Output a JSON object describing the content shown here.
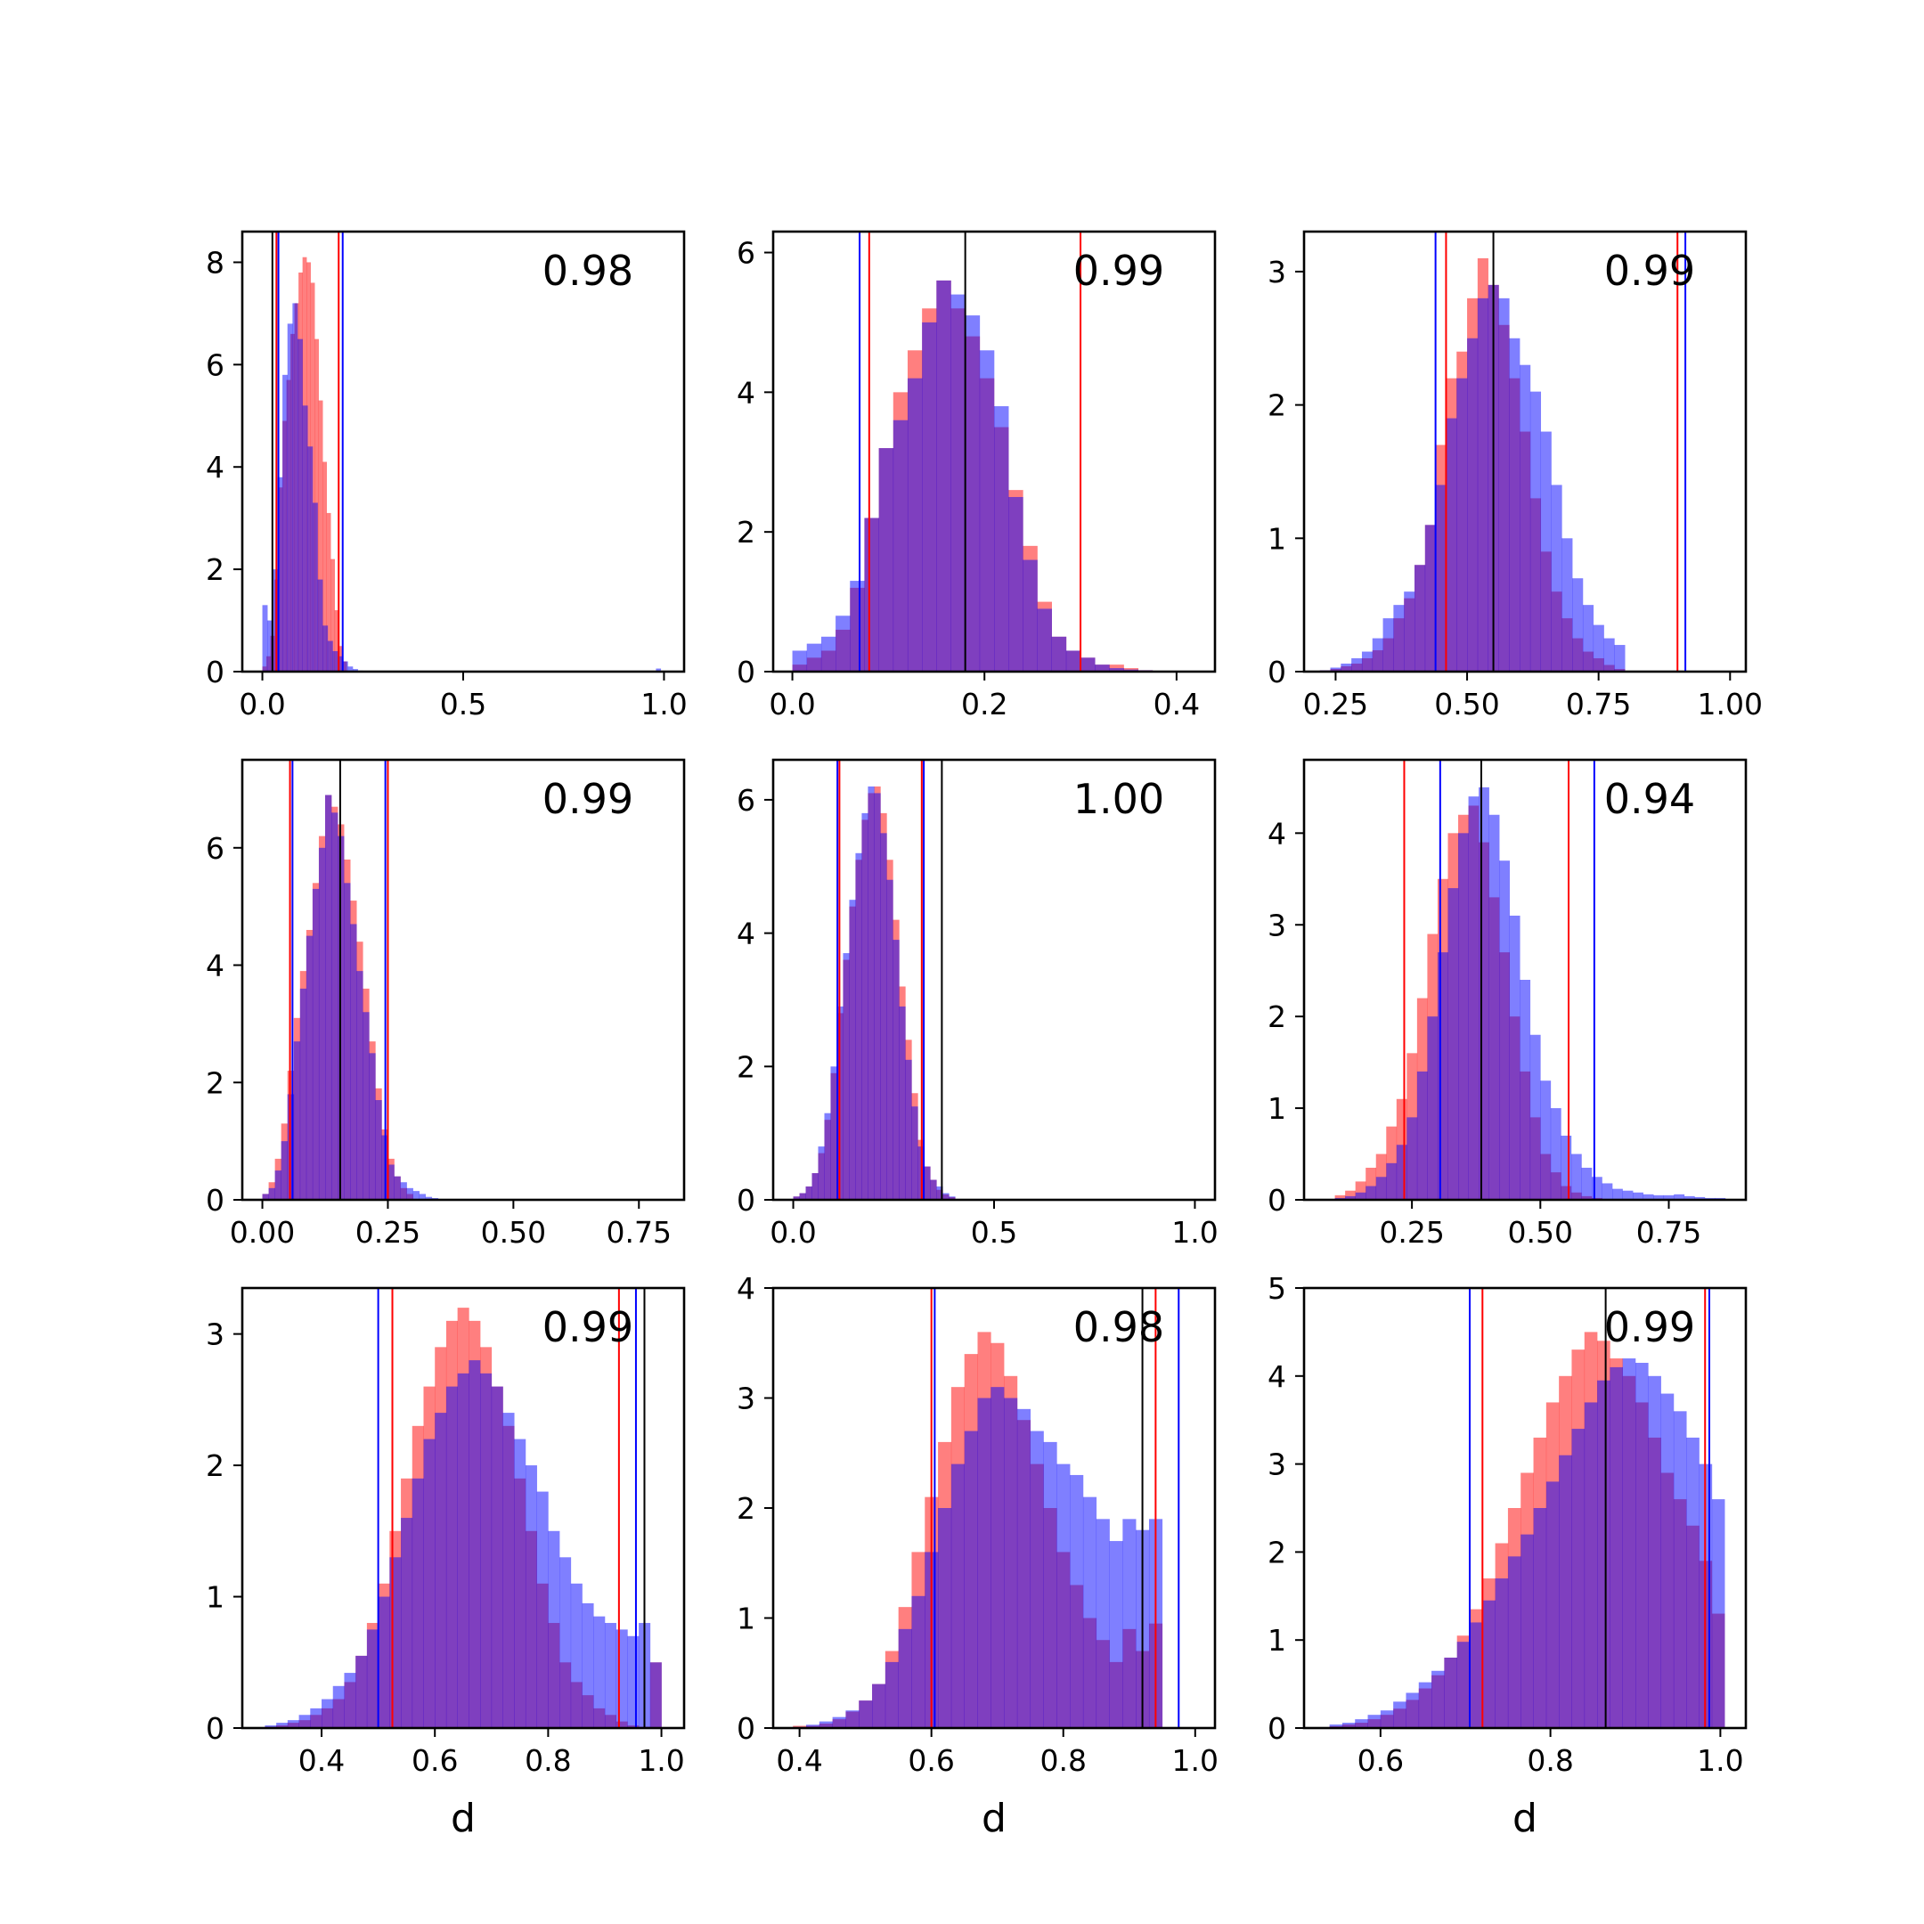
{
  "chart_data": [
    {
      "type": "bar",
      "annotation": "0.98",
      "xlim": [
        -0.05,
        1.05
      ],
      "ylim": [
        0,
        8.6
      ],
      "xticks": [
        0.0,
        0.5,
        1.0
      ],
      "xticklabels": [
        "0.0",
        "0.5",
        "1.0"
      ],
      "yticks": [
        0,
        2,
        4,
        6,
        8
      ],
      "yticklabels": [
        "0",
        "2",
        "4",
        "6",
        "8"
      ],
      "xlabel": "",
      "series": [
        {
          "name": "",
          "color": "#ff0000",
          "bin_start": 0.0,
          "bin_width": 0.01,
          "values": [
            0.1,
            0.3,
            0.7,
            1.8,
            3.6,
            4.9,
            5.7,
            6.6,
            7.2,
            7.8,
            8.1,
            8.0,
            7.6,
            6.5,
            5.3,
            4.1,
            3.1,
            2.2,
            1.2,
            0.5,
            0.2
          ]
        },
        {
          "name": "",
          "color": "#0000ff",
          "bin_start": 0.0,
          "bin_width": 0.0125,
          "values": [
            1.3,
            1.0,
            2.0,
            3.8,
            5.8,
            6.8,
            7.2,
            6.5,
            5.2,
            4.4,
            3.3,
            1.8,
            0.9,
            0.6,
            0.4,
            0.3,
            0.2,
            0.1,
            0.05,
            0.02
          ],
          "outlier": {
            "x": 0.98,
            "value": 0.06
          }
        }
      ],
      "vlines": [
        {
          "x": 0.025,
          "color": "#000000"
        },
        {
          "x": 0.035,
          "color": "#ff0000"
        },
        {
          "x": 0.04,
          "color": "#0000ff"
        },
        {
          "x": 0.19,
          "color": "#ff0000"
        },
        {
          "x": 0.2,
          "color": "#0000ff"
        }
      ]
    },
    {
      "type": "bar",
      "annotation": "0.99",
      "xlim": [
        -0.02,
        0.44
      ],
      "ylim": [
        0,
        6.3
      ],
      "xticks": [
        0.0,
        0.2,
        0.4
      ],
      "xticklabels": [
        "0.0",
        "0.2",
        "0.4"
      ],
      "yticks": [
        0,
        2,
        4,
        6
      ],
      "yticklabels": [
        "0",
        "2",
        "4",
        "6"
      ],
      "xlabel": "",
      "series": [
        {
          "name": "",
          "color": "#ff0000",
          "bin_start": 0.0,
          "bin_width": 0.015,
          "values": [
            0.1,
            0.2,
            0.3,
            0.6,
            1.2,
            2.2,
            3.2,
            4.0,
            4.6,
            5.2,
            5.6,
            5.2,
            4.8,
            4.2,
            3.5,
            2.6,
            1.8,
            1.0,
            0.5,
            0.3,
            0.2,
            0.1,
            0.1,
            0.05,
            0.02,
            0.01,
            0.01,
            0.005
          ]
        },
        {
          "name": "",
          "color": "#0000ff",
          "bin_start": 0.0,
          "bin_width": 0.015,
          "values": [
            0.3,
            0.4,
            0.5,
            0.8,
            1.3,
            2.2,
            3.2,
            3.6,
            4.2,
            5.0,
            5.6,
            5.4,
            5.1,
            4.6,
            3.8,
            2.5,
            1.6,
            0.9,
            0.5,
            0.3,
            0.2,
            0.1,
            0.05,
            0.03,
            0.02,
            0.01
          ]
        }
      ],
      "vlines": [
        {
          "x": 0.07,
          "color": "#0000ff"
        },
        {
          "x": 0.08,
          "color": "#ff0000"
        },
        {
          "x": 0.18,
          "color": "#000000"
        },
        {
          "x": 0.3,
          "color": "#ff0000"
        }
      ]
    },
    {
      "type": "bar",
      "annotation": "0.99",
      "xlim": [
        0.19,
        1.03
      ],
      "ylim": [
        0,
        3.3
      ],
      "xticks": [
        0.25,
        0.5,
        0.75,
        1.0
      ],
      "xticklabels": [
        "0.25",
        "0.50",
        "0.75",
        "1.00"
      ],
      "yticks": [
        0,
        1,
        2,
        3
      ],
      "yticklabels": [
        "0",
        "1",
        "2",
        "3"
      ],
      "xlabel": "",
      "series": [
        {
          "name": "",
          "color": "#ff0000",
          "bin_start": 0.22,
          "bin_width": 0.02,
          "values": [
            0.01,
            0.02,
            0.04,
            0.06,
            0.1,
            0.16,
            0.25,
            0.4,
            0.55,
            0.8,
            1.1,
            1.7,
            2.2,
            2.4,
            2.8,
            3.1,
            2.9,
            2.6,
            2.2,
            1.8,
            1.3,
            0.9,
            0.6,
            0.4,
            0.25,
            0.15,
            0.1,
            0.05,
            0.02
          ]
        },
        {
          "name": "",
          "color": "#0000ff",
          "bin_start": 0.22,
          "bin_width": 0.02,
          "values": [
            0.01,
            0.03,
            0.06,
            0.1,
            0.15,
            0.25,
            0.4,
            0.5,
            0.6,
            0.8,
            1.1,
            1.4,
            1.9,
            2.2,
            2.5,
            2.8,
            2.9,
            2.8,
            2.5,
            2.3,
            2.1,
            1.8,
            1.4,
            1.0,
            0.7,
            0.5,
            0.35,
            0.25,
            0.2
          ]
        }
      ],
      "vlines": [
        {
          "x": 0.44,
          "color": "#0000ff"
        },
        {
          "x": 0.46,
          "color": "#ff0000"
        },
        {
          "x": 0.55,
          "color": "#000000"
        },
        {
          "x": 0.9,
          "color": "#ff0000"
        },
        {
          "x": 0.915,
          "color": "#0000ff"
        }
      ]
    },
    {
      "type": "bar",
      "annotation": "0.99",
      "xlim": [
        -0.04,
        0.84
      ],
      "ylim": [
        0,
        7.5
      ],
      "xticks": [
        0.0,
        0.25,
        0.5,
        0.75
      ],
      "xticklabels": [
        "0.00",
        "0.25",
        "0.50",
        "0.75"
      ],
      "yticks": [
        0,
        2,
        4,
        6
      ],
      "yticklabels": [
        "0",
        "2",
        "4",
        "6"
      ],
      "xlabel": "",
      "series": [
        {
          "name": "",
          "color": "#ff0000",
          "bin_start": 0.0,
          "bin_width": 0.0125,
          "values": [
            0.1,
            0.3,
            0.7,
            1.3,
            2.2,
            3.1,
            3.9,
            4.6,
            5.4,
            6.2,
            6.9,
            6.7,
            6.4,
            5.8,
            5.1,
            4.4,
            3.6,
            2.7,
            1.9,
            1.2,
            0.7,
            0.4,
            0.2,
            0.1
          ]
        },
        {
          "name": "",
          "color": "#0000ff",
          "bin_start": 0.0,
          "bin_width": 0.0125,
          "values": [
            0.1,
            0.2,
            0.5,
            1.0,
            1.8,
            2.7,
            3.6,
            4.5,
            5.3,
            6.0,
            6.9,
            6.6,
            6.2,
            5.4,
            4.7,
            3.9,
            3.2,
            2.5,
            1.7,
            1.1,
            0.6,
            0.4,
            0.3,
            0.2,
            0.15,
            0.1,
            0.05,
            0.03
          ]
        }
      ],
      "vlines": [
        {
          "x": 0.055,
          "color": "#ff0000"
        },
        {
          "x": 0.06,
          "color": "#0000ff"
        },
        {
          "x": 0.155,
          "color": "#000000"
        },
        {
          "x": 0.245,
          "color": "#0000ff"
        },
        {
          "x": 0.25,
          "color": "#ff0000"
        }
      ]
    },
    {
      "type": "bar",
      "annotation": "1.00",
      "xlim": [
        -0.05,
        1.05
      ],
      "ylim": [
        0,
        6.6
      ],
      "xticks": [
        0.0,
        0.5,
        1.0
      ],
      "xticklabels": [
        "0.0",
        "0.5",
        "1.0"
      ],
      "yticks": [
        0,
        2,
        4,
        6
      ],
      "yticklabels": [
        "0",
        "2",
        "4",
        "6"
      ],
      "xlabel": "",
      "series": [
        {
          "name": "",
          "color": "#ff0000",
          "bin_start": 0.0,
          "bin_width": 0.0155,
          "values": [
            0.05,
            0.1,
            0.2,
            0.4,
            0.7,
            1.2,
            1.9,
            2.8,
            3.6,
            4.4,
            5.1,
            5.7,
            6.1,
            6.2,
            5.8,
            5.1,
            4.2,
            3.2,
            2.4,
            1.6,
            0.9,
            0.5,
            0.3,
            0.15,
            0.08,
            0.04
          ]
        },
        {
          "name": "",
          "color": "#0000ff",
          "bin_start": 0.0,
          "bin_width": 0.0155,
          "values": [
            0.05,
            0.1,
            0.2,
            0.4,
            0.8,
            1.3,
            2.0,
            2.9,
            3.7,
            4.5,
            5.2,
            5.8,
            6.2,
            6.1,
            5.5,
            4.8,
            3.9,
            2.9,
            2.1,
            1.4,
            0.8,
            0.5,
            0.3,
            0.2,
            0.1,
            0.05
          ]
        }
      ],
      "vlines": [
        {
          "x": 0.11,
          "color": "#0000ff"
        },
        {
          "x": 0.115,
          "color": "#ff0000"
        },
        {
          "x": 0.32,
          "color": "#ff0000"
        },
        {
          "x": 0.325,
          "color": "#0000ff"
        },
        {
          "x": 0.37,
          "color": "#000000"
        }
      ]
    },
    {
      "type": "bar",
      "annotation": "0.94",
      "xlim": [
        0.04,
        0.9
      ],
      "ylim": [
        0,
        4.8
      ],
      "xticks": [
        0.25,
        0.5,
        0.75
      ],
      "xticklabels": [
        "0.25",
        "0.50",
        "0.75"
      ],
      "yticks": [
        0,
        1,
        2,
        3,
        4
      ],
      "yticklabels": [
        "0",
        "1",
        "2",
        "3",
        "4"
      ],
      "xlabel": "",
      "series": [
        {
          "name": "",
          "color": "#ff0000",
          "bin_start": 0.1,
          "bin_width": 0.02,
          "values": [
            0.05,
            0.1,
            0.2,
            0.35,
            0.5,
            0.8,
            1.1,
            1.6,
            2.2,
            2.9,
            3.5,
            4.0,
            4.2,
            4.3,
            3.9,
            3.3,
            2.7,
            2.0,
            1.4,
            0.9,
            0.5,
            0.3,
            0.15,
            0.08,
            0.04,
            0.02
          ]
        },
        {
          "name": "",
          "color": "#0000ff",
          "bin_start": 0.1,
          "bin_width": 0.02,
          "values": [
            0.02,
            0.04,
            0.08,
            0.15,
            0.25,
            0.4,
            0.6,
            0.9,
            1.4,
            2.0,
            2.7,
            3.4,
            4.0,
            4.4,
            4.5,
            4.2,
            3.7,
            3.1,
            2.4,
            1.8,
            1.3,
            1.0,
            0.7,
            0.5,
            0.35,
            0.25,
            0.18,
            0.12,
            0.1,
            0.08,
            0.06,
            0.05,
            0.05,
            0.06,
            0.04,
            0.03,
            0.02,
            0.02
          ]
        }
      ],
      "vlines": [
        {
          "x": 0.235,
          "color": "#ff0000"
        },
        {
          "x": 0.305,
          "color": "#0000ff"
        },
        {
          "x": 0.385,
          "color": "#000000"
        },
        {
          "x": 0.555,
          "color": "#ff0000"
        },
        {
          "x": 0.605,
          "color": "#0000ff"
        }
      ]
    },
    {
      "type": "bar",
      "annotation": "0.99",
      "xlim": [
        0.26,
        1.04
      ],
      "ylim": [
        0,
        3.35
      ],
      "xticks": [
        0.4,
        0.6,
        0.8,
        1.0
      ],
      "xticklabels": [
        "0.4",
        "0.6",
        "0.8",
        "1.0"
      ],
      "yticks": [
        0,
        1,
        2,
        3
      ],
      "yticklabels": [
        "0",
        "1",
        "2",
        "3"
      ],
      "xlabel": "d",
      "series": [
        {
          "name": "",
          "color": "#ff0000",
          "bin_start": 0.3,
          "bin_width": 0.02,
          "values": [
            0.01,
            0.02,
            0.04,
            0.06,
            0.1,
            0.15,
            0.22,
            0.35,
            0.55,
            0.8,
            1.1,
            1.5,
            1.9,
            2.3,
            2.6,
            2.9,
            3.1,
            3.2,
            3.1,
            2.9,
            2.6,
            2.3,
            1.9,
            1.5,
            1.1,
            0.8,
            0.5,
            0.35,
            0.25,
            0.15,
            0.1,
            0.05,
            0.02,
            0.01,
            0.5
          ]
        },
        {
          "name": "",
          "color": "#0000ff",
          "bin_start": 0.3,
          "bin_width": 0.02,
          "values": [
            0.02,
            0.04,
            0.06,
            0.1,
            0.15,
            0.22,
            0.32,
            0.42,
            0.55,
            0.75,
            1.0,
            1.3,
            1.6,
            1.9,
            2.2,
            2.4,
            2.6,
            2.7,
            2.8,
            2.7,
            2.6,
            2.4,
            2.2,
            2.0,
            1.8,
            1.5,
            1.3,
            1.1,
            0.95,
            0.85,
            0.8,
            0.75,
            0.7,
            0.8,
            0.5
          ]
        }
      ],
      "vlines": [
        {
          "x": 0.5,
          "color": "#0000ff"
        },
        {
          "x": 0.525,
          "color": "#ff0000"
        },
        {
          "x": 0.925,
          "color": "#ff0000"
        },
        {
          "x": 0.955,
          "color": "#0000ff"
        },
        {
          "x": 0.97,
          "color": "#000000"
        }
      ]
    },
    {
      "type": "bar",
      "annotation": "0.98",
      "xlim": [
        0.36,
        1.03
      ],
      "ylim": [
        0,
        4.0
      ],
      "xticks": [
        0.4,
        0.6,
        0.8,
        1.0
      ],
      "xticklabels": [
        "0.4",
        "0.6",
        "0.8",
        "1.0"
      ],
      "yticks": [
        0,
        1,
        2,
        3,
        4
      ],
      "yticklabels": [
        "0",
        "1",
        "2",
        "3",
        "4"
      ],
      "xlabel": "d",
      "series": [
        {
          "name": "",
          "color": "#ff0000",
          "bin_start": 0.39,
          "bin_width": 0.02,
          "values": [
            0.02,
            0.02,
            0.04,
            0.08,
            0.15,
            0.25,
            0.4,
            0.7,
            1.1,
            1.6,
            2.1,
            2.6,
            3.1,
            3.4,
            3.6,
            3.5,
            3.2,
            2.8,
            2.4,
            2.0,
            1.6,
            1.3,
            1.0,
            0.8,
            0.6,
            0.9,
            0.7,
            0.95
          ]
        },
        {
          "name": "",
          "color": "#0000ff",
          "bin_start": 0.39,
          "bin_width": 0.02,
          "values": [
            0.01,
            0.03,
            0.06,
            0.1,
            0.16,
            0.25,
            0.4,
            0.6,
            0.9,
            1.2,
            1.6,
            2.0,
            2.4,
            2.7,
            3.0,
            3.1,
            3.0,
            2.9,
            2.7,
            2.6,
            2.4,
            2.3,
            2.1,
            1.9,
            1.7,
            1.9,
            1.8,
            1.9
          ]
        }
      ],
      "vlines": [
        {
          "x": 0.6,
          "color": "#ff0000"
        },
        {
          "x": 0.605,
          "color": "#0000ff"
        },
        {
          "x": 0.92,
          "color": "#000000"
        },
        {
          "x": 0.94,
          "color": "#ff0000"
        },
        {
          "x": 0.975,
          "color": "#0000ff"
        }
      ]
    },
    {
      "type": "bar",
      "annotation": "0.99",
      "xlim": [
        0.51,
        1.03
      ],
      "ylim": [
        0,
        5.0
      ],
      "xticks": [
        0.6,
        0.8,
        1.0
      ],
      "xticklabels": [
        "0.6",
        "0.8",
        "1.0"
      ],
      "yticks": [
        0,
        1,
        2,
        3,
        4,
        5
      ],
      "yticklabels": [
        "0",
        "1",
        "2",
        "3",
        "4",
        "5"
      ],
      "xlabel": "d",
      "series": [
        {
          "name": "",
          "color": "#ff0000",
          "bin_start": 0.54,
          "bin_width": 0.015,
          "values": [
            0.02,
            0.04,
            0.06,
            0.1,
            0.15,
            0.22,
            0.32,
            0.45,
            0.6,
            0.8,
            1.05,
            1.35,
            1.7,
            2.1,
            2.5,
            2.9,
            3.3,
            3.7,
            4.0,
            4.3,
            4.5,
            4.4,
            4.2,
            4.0,
            3.7,
            3.3,
            2.9,
            2.6,
            2.3,
            1.9,
            1.3
          ]
        },
        {
          "name": "",
          "color": "#0000ff",
          "bin_start": 0.54,
          "bin_width": 0.015,
          "values": [
            0.04,
            0.06,
            0.1,
            0.15,
            0.2,
            0.3,
            0.4,
            0.52,
            0.65,
            0.8,
            0.98,
            1.2,
            1.45,
            1.7,
            1.95,
            2.2,
            2.5,
            2.8,
            3.1,
            3.4,
            3.7,
            3.95,
            4.1,
            4.2,
            4.15,
            4.0,
            3.8,
            3.6,
            3.3,
            3.0,
            2.6
          ]
        }
      ],
      "vlines": [
        {
          "x": 0.705,
          "color": "#0000ff"
        },
        {
          "x": 0.72,
          "color": "#ff0000"
        },
        {
          "x": 0.865,
          "color": "#000000"
        },
        {
          "x": 0.982,
          "color": "#ff0000"
        },
        {
          "x": 0.987,
          "color": "#0000ff"
        }
      ]
    }
  ]
}
